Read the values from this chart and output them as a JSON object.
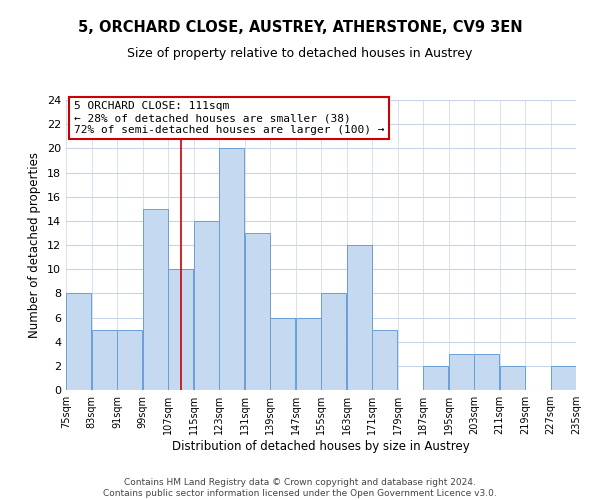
{
  "title": "5, ORCHARD CLOSE, AUSTREY, ATHERSTONE, CV9 3EN",
  "subtitle": "Size of property relative to detached houses in Austrey",
  "xlabel": "Distribution of detached houses by size in Austrey",
  "ylabel": "Number of detached properties",
  "footer_line1": "Contains HM Land Registry data © Crown copyright and database right 2024.",
  "footer_line2": "Contains public sector information licensed under the Open Government Licence v3.0.",
  "bins": [
    75,
    83,
    91,
    99,
    107,
    115,
    123,
    131,
    139,
    147,
    155,
    163,
    171,
    179,
    187,
    195,
    203,
    211,
    219,
    227,
    235
  ],
  "counts": [
    8,
    5,
    5,
    15,
    10,
    14,
    20,
    13,
    6,
    6,
    8,
    12,
    5,
    0,
    2,
    3,
    3,
    2,
    0,
    2
  ],
  "bar_color": "#c5d9f1",
  "bar_edge_color": "#6a9fd8",
  "property_size": 111,
  "property_line_color": "#cc0000",
  "annotation_title": "5 ORCHARD CLOSE: 111sqm",
  "annotation_line1": "← 28% of detached houses are smaller (38)",
  "annotation_line2": "72% of semi-detached houses are larger (100) →",
  "annotation_box_facecolor": "#ffffff",
  "annotation_box_edgecolor": "#cc0000",
  "ylim": [
    0,
    24
  ],
  "yticks": [
    0,
    2,
    4,
    6,
    8,
    10,
    12,
    14,
    16,
    18,
    20,
    22,
    24
  ],
  "tick_labels": [
    "75sqm",
    "83sqm",
    "91sqm",
    "99sqm",
    "107sqm",
    "115sqm",
    "123sqm",
    "131sqm",
    "139sqm",
    "147sqm",
    "155sqm",
    "163sqm",
    "171sqm",
    "179sqm",
    "187sqm",
    "195sqm",
    "203sqm",
    "211sqm",
    "219sqm",
    "227sqm",
    "235sqm"
  ],
  "background_color": "#ffffff",
  "grid_color": "#c8d4e8",
  "title_fontsize": 10.5,
  "subtitle_fontsize": 9,
  "axis_label_fontsize": 8.5,
  "tick_fontsize": 7,
  "annotation_fontsize": 8,
  "footer_fontsize": 6.5
}
